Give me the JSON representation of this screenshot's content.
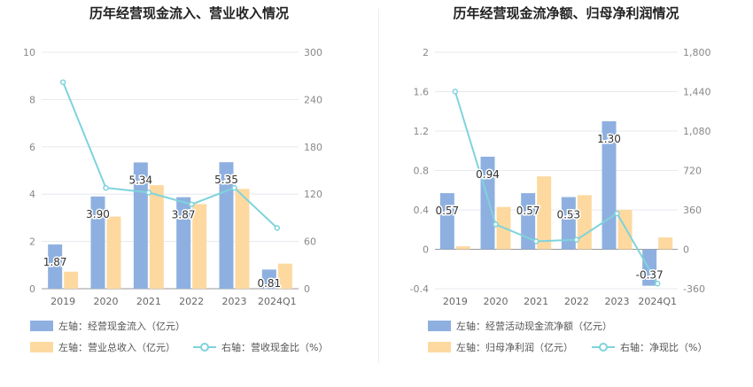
{
  "chart_data": [
    {
      "type": "bar",
      "title": "历年经营现金流入、营业收入情况",
      "categories": [
        "2019",
        "2020",
        "2021",
        "2022",
        "2023",
        "2024Q1"
      ],
      "y_left": {
        "ticks": [
          "0",
          "2",
          "4",
          "6",
          "8",
          "10"
        ],
        "min": 0,
        "max": 10
      },
      "y_right": {
        "ticks": [
          "0",
          "60",
          "120",
          "180",
          "240",
          "300"
        ],
        "min": 0,
        "max": 300
      },
      "series": [
        {
          "name": "左轴：经营现金流入（亿元）",
          "kind": "bar",
          "axis": "left",
          "color": "#8eb0e0",
          "values": [
            1.87,
            3.9,
            5.34,
            3.87,
            5.35,
            0.81
          ],
          "labels": [
            "1.87",
            "3.90",
            "5.34",
            "3.87",
            "5.35",
            "0.81"
          ]
        },
        {
          "name": "左轴：营业总收入（亿元）",
          "kind": "bar",
          "axis": "left",
          "color": "#fdd9a0",
          "values": [
            0.72,
            3.05,
            4.38,
            3.58,
            4.22,
            1.06
          ]
        },
        {
          "name": "右轴：营收现金比（%）",
          "kind": "line",
          "axis": "right",
          "color": "#7fd3dc",
          "values": [
            262,
            128,
            122,
            107,
            128,
            77
          ]
        }
      ],
      "legend": {
        "position": "bottom"
      }
    },
    {
      "type": "bar",
      "title": "历年经营现金流净额、归母净利润情况",
      "categories": [
        "2019",
        "2020",
        "2021",
        "2022",
        "2023",
        "2024Q1"
      ],
      "y_left": {
        "ticks": [
          "-0.4",
          "0",
          "0.4",
          "0.8",
          "1.2",
          "1.6",
          "2"
        ],
        "min": -0.4,
        "max": 2
      },
      "y_right": {
        "ticks": [
          "-360",
          "0",
          "360",
          "720",
          "1,080",
          "1,440",
          "1,800"
        ],
        "min": -360,
        "max": 1800
      },
      "series": [
        {
          "name": "左轴：经营活动现金流净额（亿元）",
          "kind": "bar",
          "axis": "left",
          "color": "#8eb0e0",
          "values": [
            0.57,
            0.94,
            0.57,
            0.53,
            1.3,
            -0.37
          ],
          "labels": [
            "0.57",
            "0.94",
            "0.57",
            "0.53",
            "1.30",
            "-0.37"
          ]
        },
        {
          "name": "左轴：归母净利润（亿元）",
          "kind": "bar",
          "axis": "left",
          "color": "#fdd9a0",
          "values": [
            0.03,
            0.43,
            0.74,
            0.55,
            0.4,
            0.12
          ]
        },
        {
          "name": "右轴：净现比（%）",
          "kind": "line",
          "axis": "right",
          "color": "#7fd3dc",
          "values": [
            1441,
            228,
            73,
            87,
            328,
            -313
          ]
        }
      ],
      "legend": {
        "position": "bottom"
      }
    }
  ]
}
